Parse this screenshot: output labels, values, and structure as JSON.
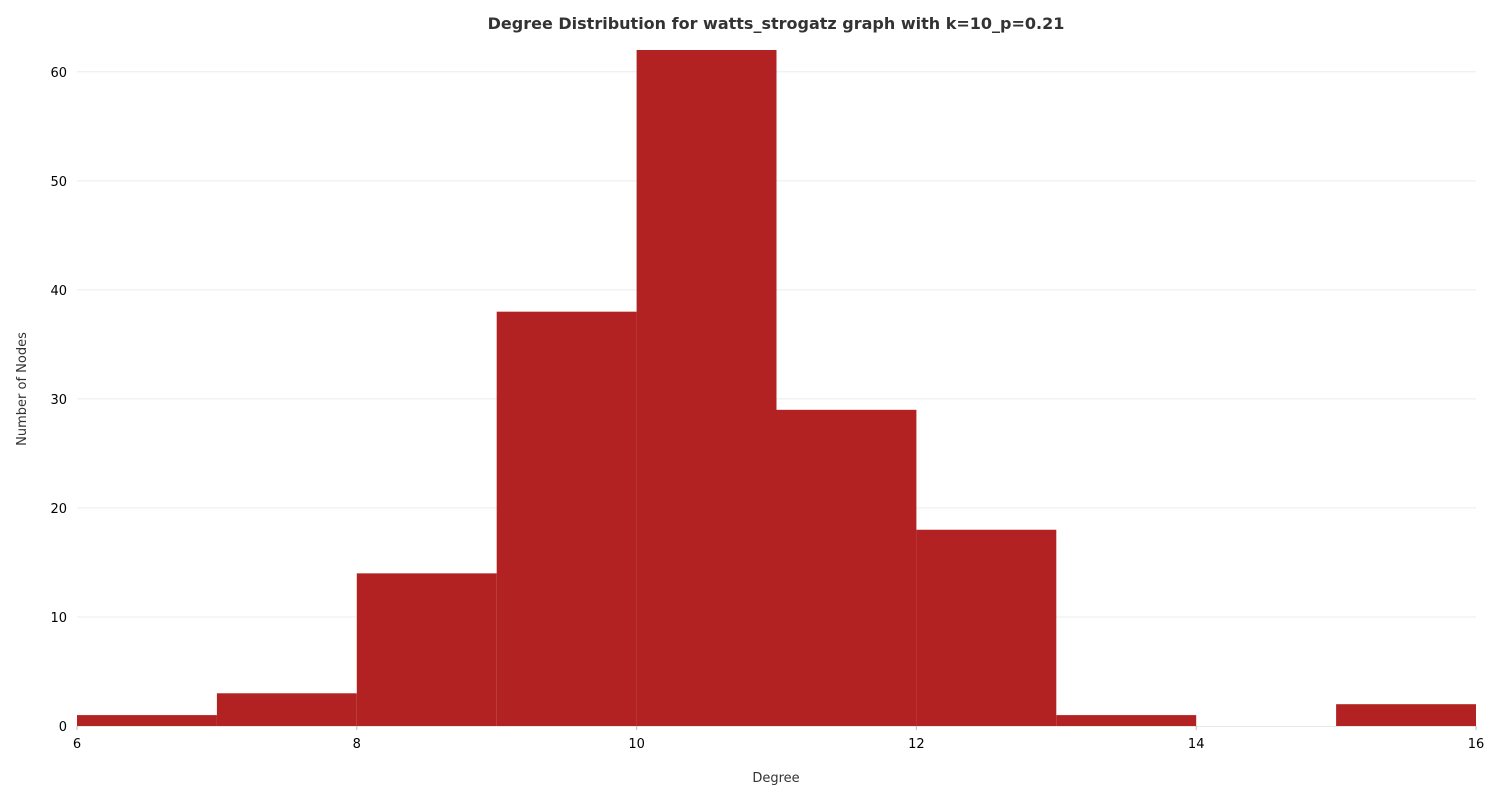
{
  "chart_data": {
    "type": "bar",
    "title": "Degree Distribution for watts_strogatz graph with k=10_p=0.21",
    "xlabel": "Degree",
    "ylabel": "Number of Nodes",
    "xlim": [
      6,
      16
    ],
    "ylim": [
      0,
      62
    ],
    "bins": [
      {
        "x0": 6,
        "x1": 7,
        "value": 1
      },
      {
        "x0": 7,
        "x1": 8,
        "value": 3
      },
      {
        "x0": 8,
        "x1": 9,
        "value": 14
      },
      {
        "x0": 9,
        "x1": 10,
        "value": 38
      },
      {
        "x0": 10,
        "x1": 11,
        "value": 62
      },
      {
        "x0": 11,
        "x1": 12,
        "value": 29
      },
      {
        "x0": 12,
        "x1": 13,
        "value": 18
      },
      {
        "x0": 13,
        "x1": 14,
        "value": 1
      },
      {
        "x0": 14,
        "x1": 15,
        "value": 0
      },
      {
        "x0": 15,
        "x1": 16,
        "value": 2
      }
    ],
    "x_ticks": [
      "6",
      "8",
      "10",
      "12",
      "14",
      "16"
    ],
    "y_ticks": [
      "0",
      "10",
      "20",
      "30",
      "40",
      "50",
      "60"
    ],
    "grid": "horizontal",
    "legend": "none",
    "bar_color": "#b22222"
  }
}
